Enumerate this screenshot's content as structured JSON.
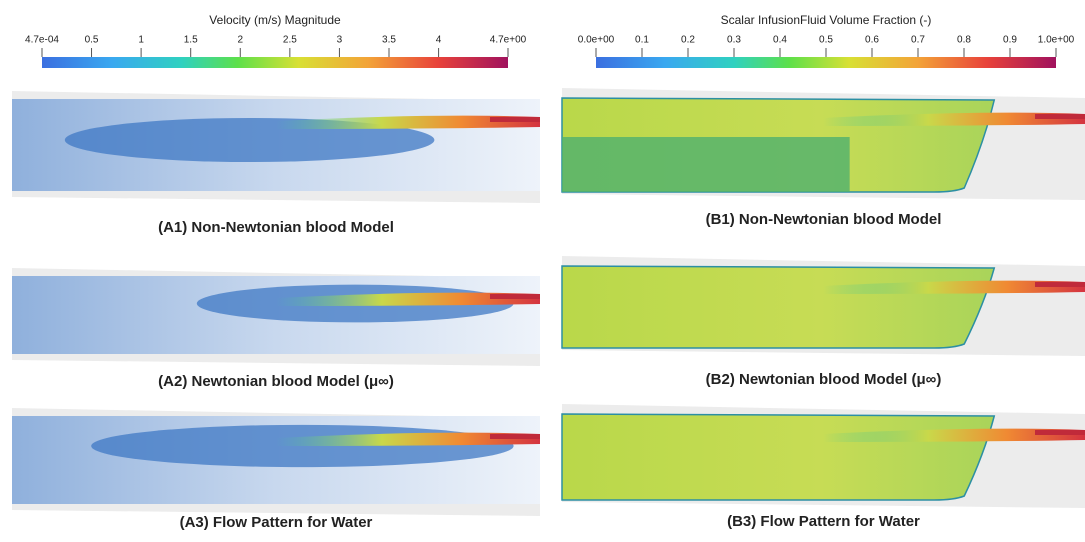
{
  "colorbars": [
    {
      "title": "Velocity (m/s) Magnitude",
      "ticks": [
        {
          "value": 0.00047,
          "label": "4.7e-04"
        },
        0.5,
        1,
        1.5,
        2,
        2.5,
        3,
        3.5,
        4,
        {
          "value": 4.7,
          "label": "4.7e+00"
        }
      ]
    },
    {
      "title": "Scalar InfusionFluid Volume Fraction (-)",
      "ticks": [
        {
          "value": 0,
          "label": "0.0e+00"
        },
        0.1,
        0.2,
        0.3,
        0.4,
        0.5,
        0.6,
        0.7,
        0.8,
        0.9,
        {
          "value": 1,
          "label": "1.0e+00"
        }
      ]
    }
  ],
  "panels": [
    {
      "caption": "(A1) Non-Newtonian blood Model"
    },
    {
      "caption": "(A2) Newtonian blood Model (μ∞)"
    },
    {
      "caption": "(A3) Flow Pattern for Water"
    },
    {
      "caption": "(B1) Non-Newtonian blood Model"
    },
    {
      "caption": "(B2) Newtonian blood Model (μ∞)"
    },
    {
      "caption": "(B3) Flow Pattern for Water"
    }
  ]
}
